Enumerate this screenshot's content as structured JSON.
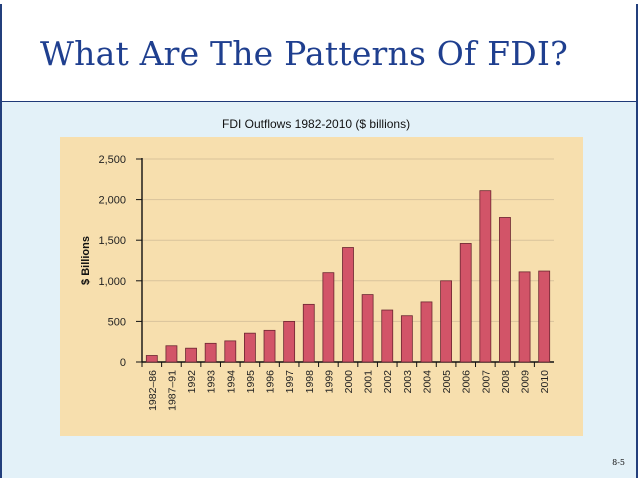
{
  "slide": {
    "title": "What Are The Patterns Of FDI?",
    "page_number": "8-5"
  },
  "chart_data": {
    "type": "bar",
    "title": "FDI Outflows 1982-2010 ($ billions)",
    "xlabel": "",
    "ylabel": "$ Billions",
    "ylim": [
      0,
      2500
    ],
    "yticks": [
      0,
      500,
      1000,
      1500,
      2000,
      2500
    ],
    "ytick_labels": [
      "0",
      "500",
      "1,000",
      "1,500",
      "2,000",
      "2,500"
    ],
    "categories": [
      "1982–86",
      "1987–91",
      "1992",
      "1993",
      "1994",
      "1995",
      "1996",
      "1997",
      "1998",
      "1999",
      "2000",
      "2001",
      "2002",
      "2003",
      "2004",
      "2005",
      "2006",
      "2007",
      "2008",
      "2009",
      "2010"
    ],
    "values": [
      80,
      200,
      170,
      230,
      260,
      355,
      390,
      500,
      710,
      1100,
      1410,
      830,
      640,
      570,
      740,
      1000,
      1460,
      2110,
      1780,
      1110,
      1120
    ],
    "bar_color": "#d25468",
    "panel_color": "#f7dfae",
    "grid": true
  }
}
